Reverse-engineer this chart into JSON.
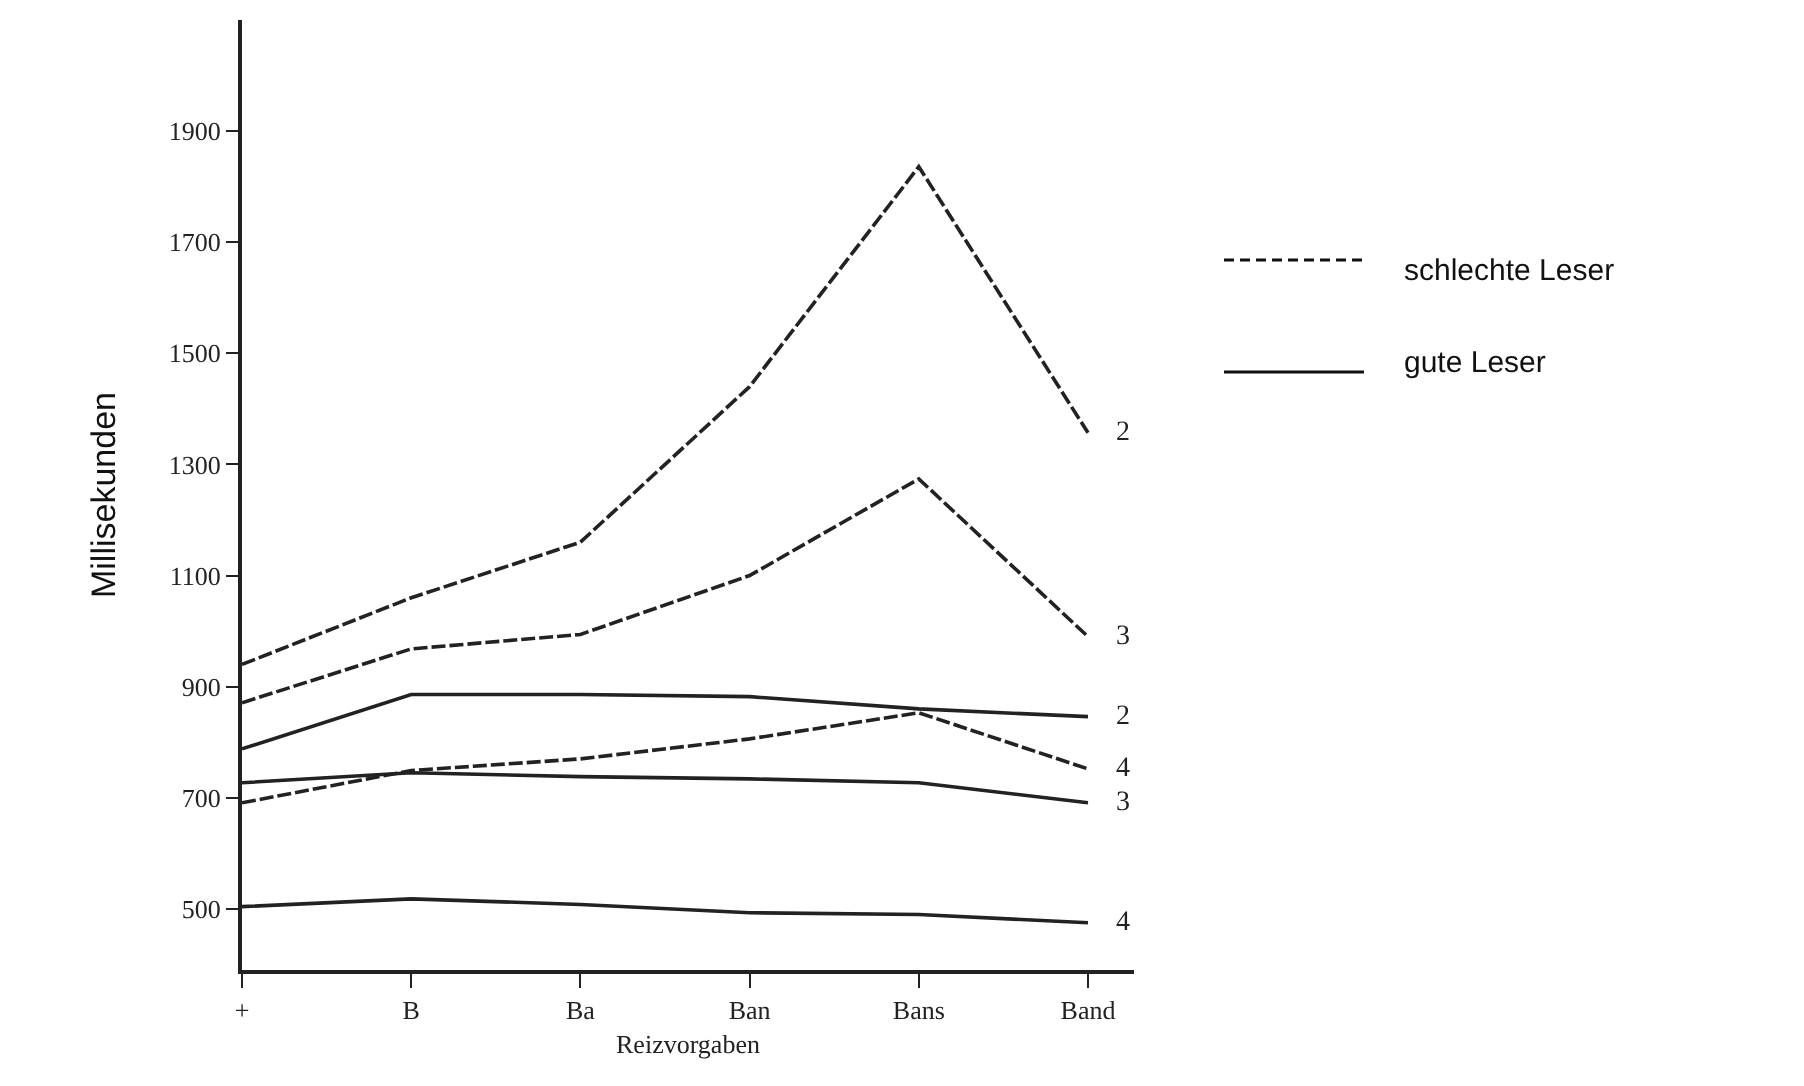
{
  "chart_data": {
    "type": "line",
    "xlabel": "Reizvorgaben",
    "ylabel": "Millisekunden",
    "categories": [
      "+",
      "B",
      "Ba",
      "Ban",
      "Bans",
      "Band"
    ],
    "series": [
      {
        "name": "2",
        "color": "#222222",
        "line_style": "dashed",
        "values": [
          940,
          1060,
          1160,
          1440,
          1836,
          1357
        ]
      },
      {
        "name": "3",
        "color": "#222222",
        "line_style": "dashed",
        "values": [
          871,
          968,
          994,
          1100,
          1274,
          990
        ]
      },
      {
        "name": "4",
        "color": "#222222",
        "line_style": "dashed",
        "values": [
          691,
          749,
          770,
          806,
          853,
          752
        ]
      },
      {
        "name": "2",
        "color": "#222222",
        "line_style": "solid",
        "values": [
          788,
          886,
          886,
          882,
          860,
          846
        ]
      },
      {
        "name": "3",
        "color": "#222222",
        "line_style": "solid",
        "values": [
          727,
          745,
          738,
          734,
          727,
          691
        ]
      },
      {
        "name": "4",
        "color": "#222222",
        "line_style": "solid",
        "values": [
          504,
          518,
          508,
          493,
          490,
          475
        ]
      }
    ],
    "ylim": [
      390,
      2100
    ],
    "yticks": [
      500,
      700,
      900,
      1100,
      1300,
      1500,
      1700,
      1900
    ],
    "annotations": [
      "schlechte Leser",
      "gute Leser"
    ],
    "grid": false,
    "legend": false,
    "marker": "none"
  }
}
